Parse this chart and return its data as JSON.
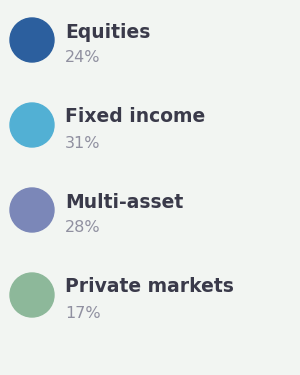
{
  "items": [
    {
      "label": "Equities",
      "pct": "24%",
      "color": "#2c5f9e"
    },
    {
      "label": "Fixed income",
      "pct": "31%",
      "color": "#52b0d4"
    },
    {
      "label": "Multi-asset",
      "pct": "28%",
      "color": "#7b87b8"
    },
    {
      "label": "Private markets",
      "pct": "17%",
      "color": "#8db89a"
    }
  ],
  "label_color": "#3a3a4a",
  "pct_color": "#9090a0",
  "bg_color": "#f2f5f2",
  "label_fontsize": 13.5,
  "pct_fontsize": 11.5,
  "figsize": [
    3.0,
    3.75
  ],
  "dpi": 100
}
